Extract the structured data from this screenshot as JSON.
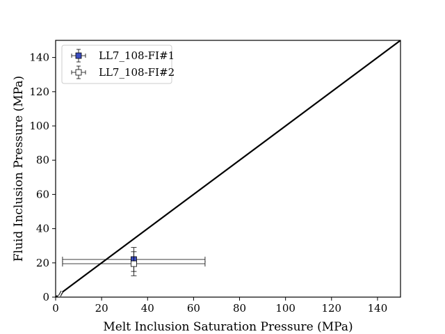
{
  "chart_data": {
    "type": "scatter",
    "title": "",
    "xlabel": "Melt Inclusion Saturation Pressure (MPa)",
    "ylabel": "Fluid Inclusion Pressure (MPa)",
    "xlim": [
      0,
      150
    ],
    "ylim": [
      0,
      150
    ],
    "xticks": [
      "0",
      "20",
      "40",
      "60",
      "80",
      "100",
      "120",
      "140"
    ],
    "yticks": [
      "0",
      "20",
      "40",
      "60",
      "80",
      "100",
      "120",
      "140"
    ],
    "grid": false,
    "legend_position": "top-left",
    "reference_line": {
      "x": [
        0,
        150
      ],
      "y": [
        0,
        150
      ],
      "color": "#000000"
    },
    "series": [
      {
        "name": "LL7_108-FI#1",
        "marker": "square",
        "fill": "#3b4cc0",
        "x": 34,
        "y": 22,
        "xerr": [
          31,
          31
        ],
        "yerr": [
          7,
          7
        ]
      },
      {
        "name": "LL7_108-FI#2",
        "marker": "square",
        "fill": "#ffffff",
        "x": 34,
        "y": 19.5,
        "xerr": [
          31,
          31
        ],
        "yerr": [
          7,
          7
        ]
      }
    ]
  }
}
